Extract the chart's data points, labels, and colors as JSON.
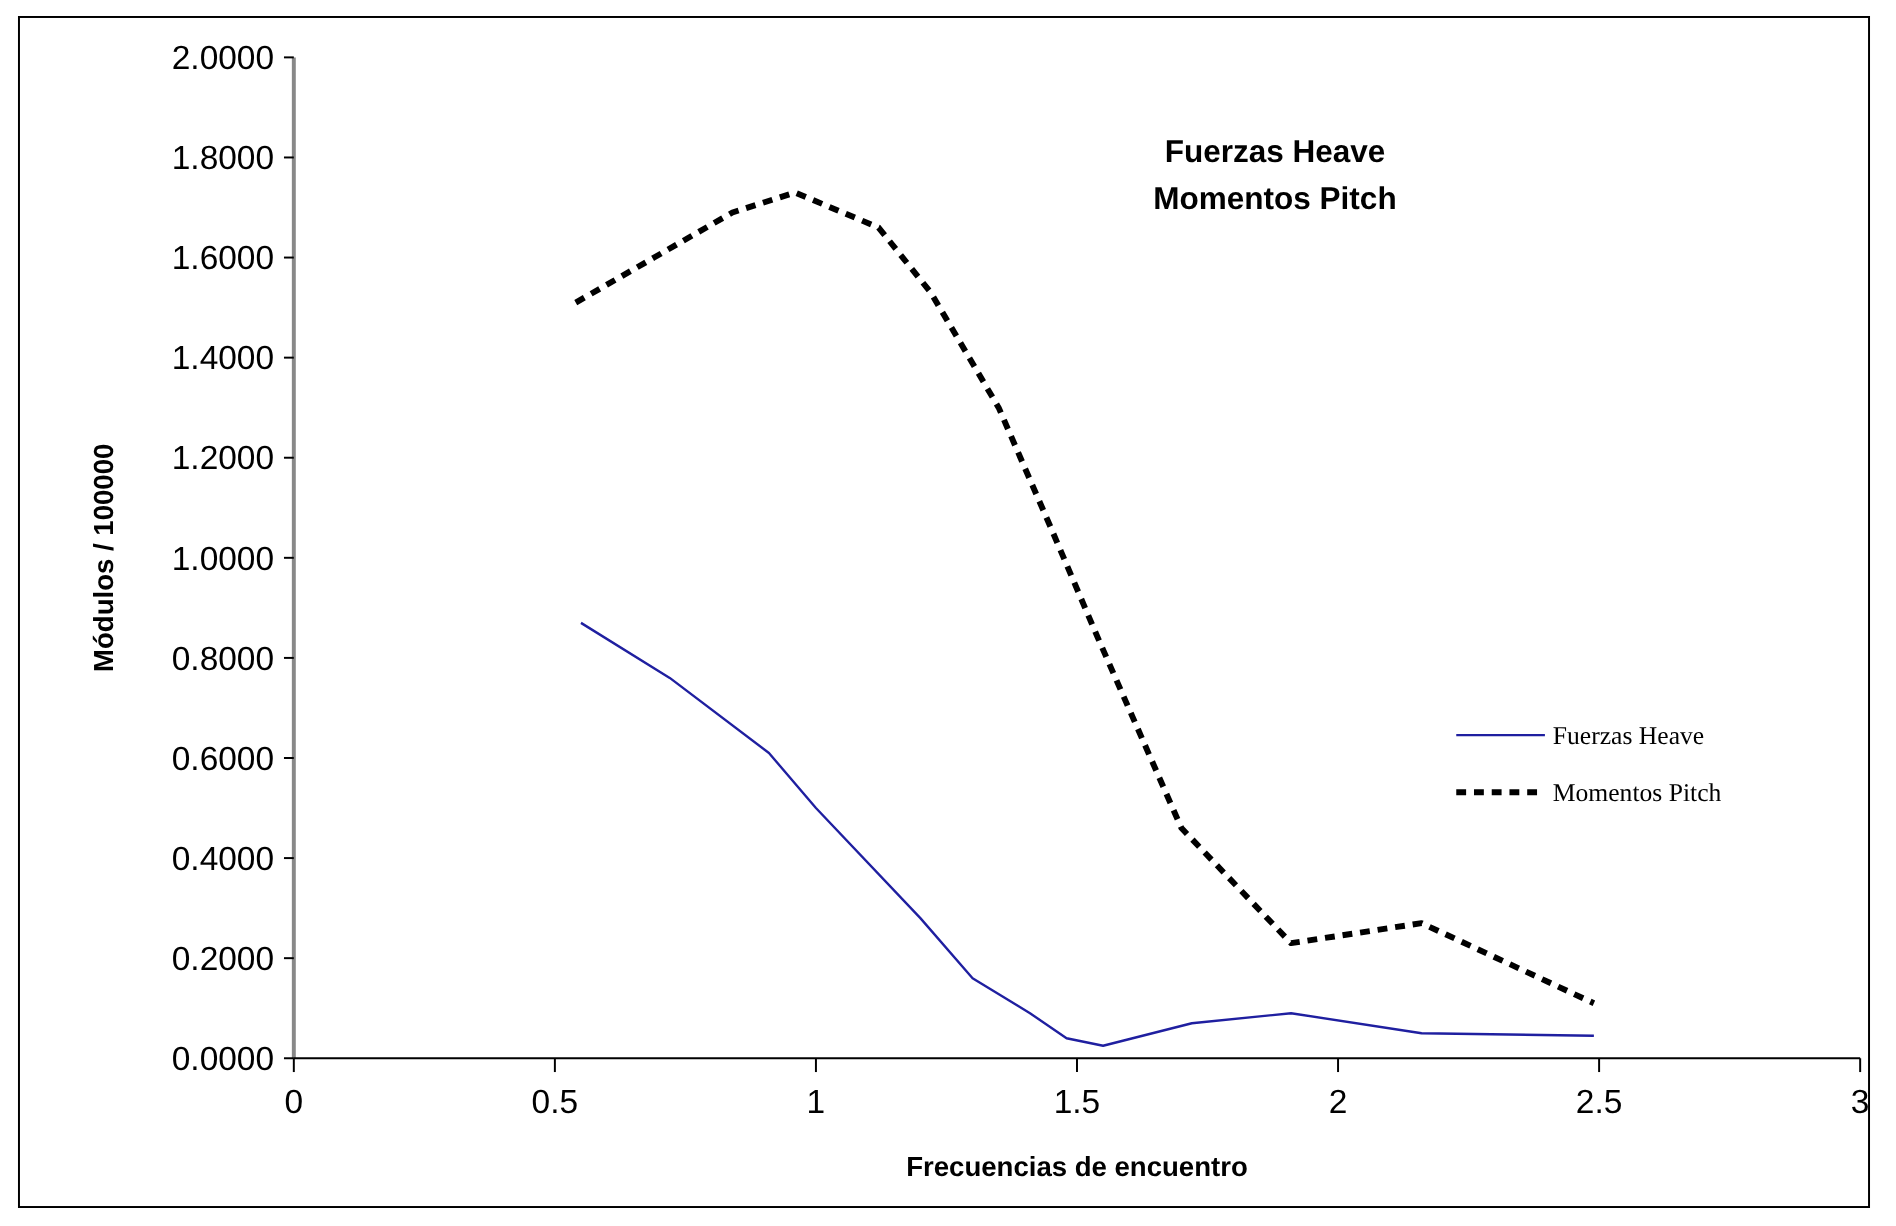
{
  "chart_data": {
    "type": "line",
    "title": "Fuerzas Heave\nMomentos Pitch",
    "xlabel": "Frecuencias de encuentro",
    "ylabel": "Módulos / 100000",
    "xlim": [
      0,
      3
    ],
    "xticks": [
      0,
      0.5,
      1,
      1.5,
      2,
      2.5,
      3
    ],
    "ylim": [
      0,
      2
    ],
    "yticks": [
      {
        "value": 0,
        "label": "0.0000"
      },
      {
        "value": 0.2,
        "label": "0.2000"
      },
      {
        "value": 0.4,
        "label": "0.4000"
      },
      {
        "value": 0.6,
        "label": "0.6000"
      },
      {
        "value": 0.8,
        "label": "0.8000"
      },
      {
        "value": 1,
        "label": "1.0000"
      },
      {
        "value": 1.2,
        "label": "1.2000"
      },
      {
        "value": 1.4,
        "label": "1.4000"
      },
      {
        "value": 1.6,
        "label": "1.6000"
      },
      {
        "value": 1.8,
        "label": "1.8000"
      },
      {
        "value": 2,
        "label": "2.0000"
      }
    ],
    "grid": false,
    "legend": "right",
    "series": [
      {
        "name": "Fuerzas Heave",
        "color": "#1f1fa0",
        "line_style": "solid",
        "x": [
          0.55,
          0.72,
          0.91,
          1.0,
          1.2,
          1.3,
          1.41,
          1.48,
          1.55,
          1.72,
          1.91,
          2.16,
          2.49
        ],
        "values": [
          0.87,
          0.76,
          0.61,
          0.5,
          0.28,
          0.16,
          0.09,
          0.04,
          0.025,
          0.07,
          0.09,
          0.05,
          0.045
        ]
      },
      {
        "name": "Momentos Pitch",
        "color": "#000000",
        "line_style": "dashed",
        "x": [
          0.54,
          0.69,
          0.84,
          0.96,
          1.12,
          1.22,
          1.35,
          1.45,
          1.54,
          1.7,
          1.91,
          2.16,
          2.49
        ],
        "values": [
          1.51,
          1.6,
          1.69,
          1.73,
          1.66,
          1.53,
          1.3,
          1.06,
          0.84,
          0.46,
          0.23,
          0.27,
          0.11
        ]
      }
    ]
  }
}
